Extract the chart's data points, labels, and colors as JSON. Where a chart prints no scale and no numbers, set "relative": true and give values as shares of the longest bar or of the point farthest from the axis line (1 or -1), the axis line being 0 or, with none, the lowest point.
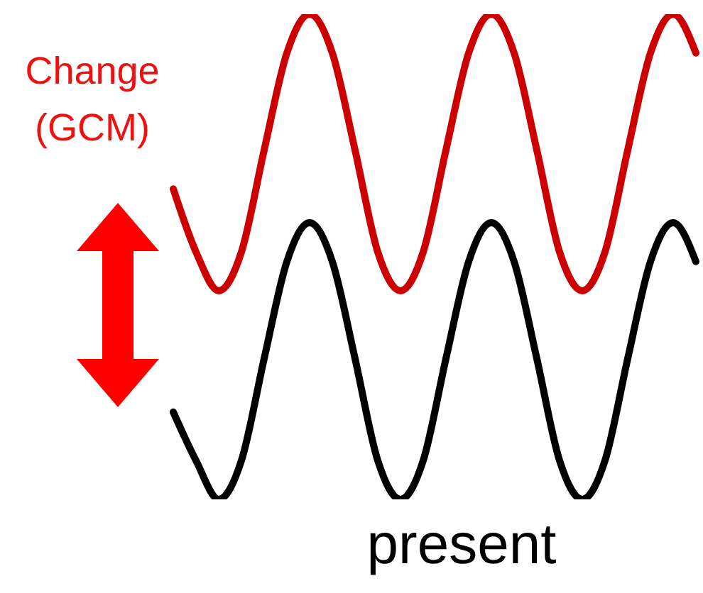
{
  "chart_data": {
    "type": "line",
    "relative": true,
    "legend": false,
    "grid": false,
    "marker": "none",
    "line_style": "solid",
    "tick_labels": false,
    "annotations": [
      "Change (GCM)"
    ],
    "categories": [
      null,
      null,
      null,
      null,
      null,
      null,
      null,
      null,
      null,
      null,
      null,
      null,
      null,
      null,
      null,
      null,
      null,
      null,
      null,
      null,
      null,
      null,
      null,
      null
    ],
    "series": [
      {
        "color": "#cc0000",
        "values": [
          0.64,
          0.51,
          0.43,
          0.51,
          0.72,
          0.92,
          1,
          0.92,
          0.72,
          0.51,
          0.43,
          0.51,
          0.72,
          0.92,
          1,
          0.92,
          0.72,
          0.51,
          0.43,
          0.51,
          0.72,
          0.92,
          1,
          0.92
        ]
      },
      {
        "name": "present",
        "color": "#000000",
        "values": [
          0.18,
          0.08,
          0,
          0.08,
          0.29,
          0.49,
          0.57,
          0.49,
          0.29,
          0.08,
          0,
          0.08,
          0.29,
          0.49,
          0.57,
          0.49,
          0.29,
          0.08,
          0,
          0.08,
          0.29,
          0.49,
          0.57,
          0.49
        ]
      }
    ]
  }
}
